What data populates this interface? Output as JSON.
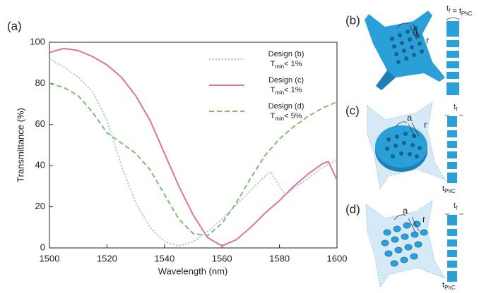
{
  "chart_data": {
    "type": "line",
    "panel_label": "(a)",
    "x_label": "Wavelength (nm)",
    "y_label": "Transmittance (%)",
    "xlim": [
      1500,
      1600
    ],
    "xticks": [
      1500,
      1520,
      1540,
      1560,
      1580,
      1600
    ],
    "ylim": [
      0,
      100
    ],
    "yticks": [
      0,
      20,
      40,
      60,
      80,
      100
    ],
    "series": [
      {
        "name": "Design (b)",
        "condition": [
          "T",
          "min",
          "< 1%"
        ],
        "color": "#a9c1e0",
        "dash": "2,2.5",
        "x": [
          1500,
          1505,
          1510,
          1515,
          1520,
          1525,
          1530,
          1535,
          1540,
          1545,
          1550,
          1555,
          1560,
          1565,
          1570,
          1575,
          1577,
          1580,
          1582,
          1585,
          1590,
          1595,
          1600
        ],
        "values": [
          92,
          88,
          83,
          76,
          62,
          40,
          22,
          10,
          3,
          1,
          3,
          8,
          14,
          21,
          28,
          35,
          37,
          30,
          26,
          29,
          34,
          39,
          43
        ]
      },
      {
        "name": "Design (c)",
        "condition": [
          "T",
          "min",
          "< 1%"
        ],
        "color": "#e0749a",
        "dash": "none",
        "x": [
          1500,
          1505,
          1510,
          1515,
          1520,
          1525,
          1530,
          1535,
          1540,
          1545,
          1550,
          1555,
          1560,
          1565,
          1570,
          1575,
          1580,
          1585,
          1590,
          1595,
          1597,
          1600
        ],
        "values": [
          95,
          97,
          96,
          93,
          89,
          83,
          74,
          62,
          46,
          30,
          16,
          5,
          1,
          4,
          10,
          17,
          23,
          30,
          36,
          41,
          42,
          33
        ]
      },
      {
        "name": "Design (d)",
        "condition": [
          "T",
          "min",
          "< 5%"
        ],
        "color": "#7fbf6e",
        "dash": "7,4",
        "x": [
          1500,
          1505,
          1510,
          1515,
          1520,
          1525,
          1530,
          1535,
          1540,
          1545,
          1550,
          1555,
          1560,
          1565,
          1570,
          1575,
          1580,
          1585,
          1590,
          1595,
          1600
        ],
        "values": [
          80,
          78,
          74,
          66,
          56,
          51,
          46,
          38,
          26,
          14,
          7,
          6,
          12,
          22,
          34,
          45,
          53,
          59,
          64,
          68,
          71
        ]
      }
    ]
  },
  "panels": [
    {
      "label": "(b)",
      "period": "a",
      "radius": "r",
      "thickness": [
        {
          "main": "t",
          "sub": "f"
        },
        {
          "main": " = t",
          "sub": "PhC"
        }
      ]
    },
    {
      "label": "(c)",
      "period": "a",
      "radius": "r",
      "thickness": [
        {
          "main": "t",
          "sub": "f"
        }
      ],
      "phc_thickness": [
        {
          "main": "t",
          "sub": "PhC"
        }
      ]
    },
    {
      "label": "(d)",
      "period": "a",
      "radius": "r",
      "thickness": [
        {
          "main": "t",
          "sub": "f"
        }
      ],
      "phc_thickness": [
        {
          "main": "t",
          "sub": "PhC"
        }
      ]
    }
  ]
}
